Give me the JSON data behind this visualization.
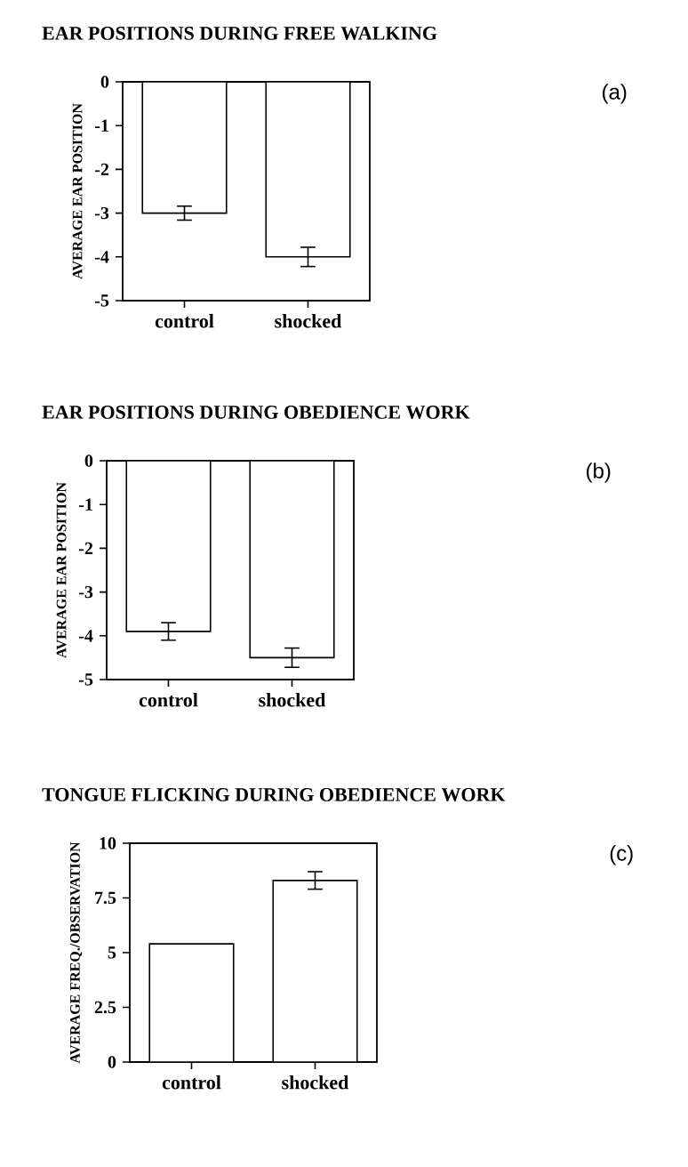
{
  "chart_data": [
    {
      "type": "bar",
      "title": "EAR POSITIONS DURING FREE WALKING",
      "ylabel": "AVERAGE EAR POSITION",
      "categories": [
        "control",
        "shocked"
      ],
      "values": [
        -3.0,
        -4.0
      ],
      "errors": [
        0.16,
        0.22
      ],
      "color": "#ffffff",
      "ylim": [
        -5,
        0
      ],
      "yticks": [
        0,
        -1,
        -2,
        -3,
        -4,
        -5
      ],
      "annotations": [
        "(a)"
      ]
    },
    {
      "type": "bar",
      "title": "EAR POSITIONS DURING OBEDIENCE WORK",
      "ylabel": "AVERAGE EAR POSITION",
      "categories": [
        "control",
        "shocked"
      ],
      "values": [
        -3.9,
        -4.5
      ],
      "errors": [
        0.2,
        0.22
      ],
      "color": "#ffffff",
      "ylim": [
        -5,
        0
      ],
      "yticks": [
        0,
        -1,
        -2,
        -3,
        -4,
        -5
      ],
      "annotations": [
        "(b)"
      ]
    },
    {
      "type": "bar",
      "title": "TONGUE FLICKING DURING OBEDIENCE WORK",
      "ylabel": "AVERAGE FREQ./OBSERVATION",
      "categories": [
        "control",
        "shocked"
      ],
      "values": [
        5.4,
        8.3
      ],
      "errors": [
        null,
        0.4
      ],
      "color": "#ffffff",
      "ylim": [
        0,
        10
      ],
      "yticks": [
        0,
        2.5,
        5,
        7.5,
        10
      ],
      "annotations": [
        "(c)"
      ]
    }
  ]
}
